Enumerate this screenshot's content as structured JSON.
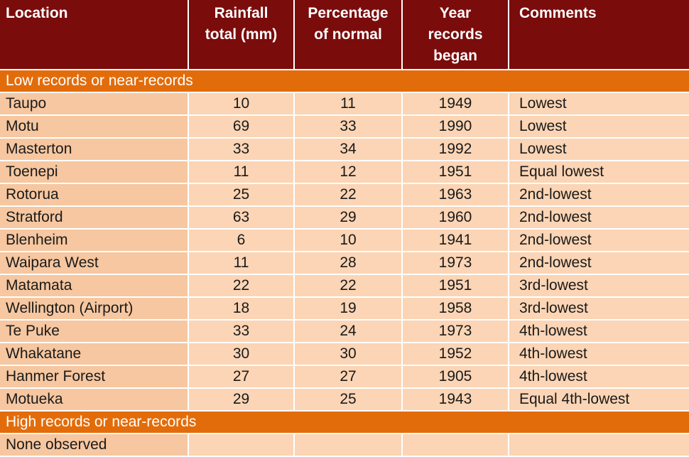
{
  "table": {
    "headers": {
      "location": "Location",
      "rainfall": [
        "Rainfall",
        "total (mm)"
      ],
      "percentage": [
        "Percentage",
        "of normal"
      ],
      "year": [
        "Year",
        "records",
        "began"
      ],
      "comments": "Comments"
    },
    "sections": [
      {
        "title": "Low records or near-records",
        "rows": [
          {
            "location": "Taupo",
            "rainfall": "10",
            "percentage": "11",
            "year": "1949",
            "comments": "Lowest"
          },
          {
            "location": "Motu",
            "rainfall": "69",
            "percentage": "33",
            "year": "1990",
            "comments": "Lowest"
          },
          {
            "location": "Masterton",
            "rainfall": "33",
            "percentage": "34",
            "year": "1992",
            "comments": "Lowest"
          },
          {
            "location": "Toenepi",
            "rainfall": "11",
            "percentage": "12",
            "year": "1951",
            "comments": "Equal lowest"
          },
          {
            "location": "Rotorua",
            "rainfall": "25",
            "percentage": "22",
            "year": "1963",
            "comments": "2nd-lowest"
          },
          {
            "location": "Stratford",
            "rainfall": "63",
            "percentage": "29",
            "year": "1960",
            "comments": "2nd-lowest"
          },
          {
            "location": "Blenheim",
            "rainfall": "6",
            "percentage": "10",
            "year": "1941",
            "comments": "2nd-lowest"
          },
          {
            "location": "Waipara West",
            "rainfall": "11",
            "percentage": "28",
            "year": "1973",
            "comments": "2nd-lowest"
          },
          {
            "location": "Matamata",
            "rainfall": "22",
            "percentage": "22",
            "year": "1951",
            "comments": "3rd-lowest"
          },
          {
            "location": "Wellington (Airport)",
            "rainfall": "18",
            "percentage": "19",
            "year": "1958",
            "comments": "3rd-lowest"
          },
          {
            "location": "Te Puke",
            "rainfall": "33",
            "percentage": "24",
            "year": "1973",
            "comments": "4th-lowest"
          },
          {
            "location": "Whakatane",
            "rainfall": "30",
            "percentage": "30",
            "year": "1952",
            "comments": "4th-lowest"
          },
          {
            "location": "Hanmer Forest",
            "rainfall": "27",
            "percentage": "27",
            "year": "1905",
            "comments": "4th-lowest"
          },
          {
            "location": "Motueka",
            "rainfall": "29",
            "percentage": "25",
            "year": "1943",
            "comments": "Equal 4th-lowest"
          }
        ]
      },
      {
        "title": "High records or near-records",
        "rows": [
          {
            "location": "None observed",
            "rainfall": "",
            "percentage": "",
            "year": "",
            "comments": ""
          }
        ]
      }
    ]
  },
  "colors": {
    "header_bg": "#7b0c0c",
    "section_bg": "#e36c0a",
    "cell_bg": "#fbd5b5",
    "location_cell_bg": "#f6c7a0"
  }
}
